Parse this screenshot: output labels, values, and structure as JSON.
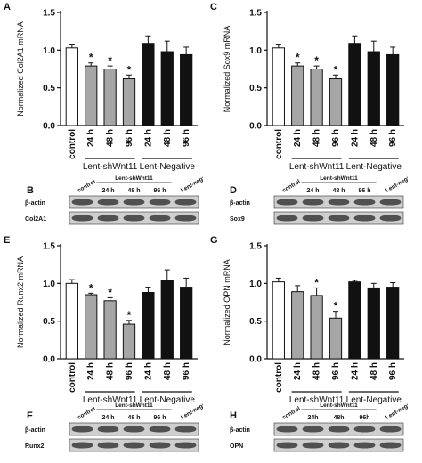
{
  "figure": {
    "group_treated": "Lent-shWnt11",
    "group_negative": "Lent-Negative",
    "x_labels": [
      "control",
      "24 h",
      "48 h",
      "96 h",
      "24 h",
      "48 h",
      "96 h"
    ],
    "colors": {
      "control": "#ffffff",
      "shWnt11": "#a6a6a6",
      "negative": "#111111",
      "axis": "#111111"
    }
  },
  "chart_data": [
    {
      "letter": "A",
      "type": "bar",
      "ylabel": "Normalized Col2A1 mRNA",
      "ylim": [
        0,
        1.5
      ],
      "yticks": [
        "0.0",
        "0.5",
        "1.0",
        "1.5"
      ],
      "categories": [
        "control",
        "24 h",
        "48 h",
        "96 h",
        "24 h",
        "48 h",
        "96 h"
      ],
      "groups": [
        "Lent-shWnt11",
        "Lent-Negative"
      ],
      "values": [
        1.03,
        0.79,
        0.75,
        0.62,
        1.09,
        0.98,
        0.94
      ],
      "errors": [
        0.05,
        0.04,
        0.04,
        0.05,
        0.1,
        0.14,
        0.1
      ],
      "significance": [
        "",
        "*",
        "*",
        "*",
        "",
        "",
        ""
      ]
    },
    {
      "letter": "C",
      "type": "bar",
      "ylabel": "Normalized Sox9 mRNA",
      "ylim": [
        0,
        1.5
      ],
      "yticks": [
        "0.0",
        "0.5",
        "1.0",
        "1.5"
      ],
      "categories": [
        "control",
        "24 h",
        "48 h",
        "96 h",
        "24 h",
        "48 h",
        "96 h"
      ],
      "groups": [
        "Lent-shWnt11",
        "Lent-Negative"
      ],
      "values": [
        1.03,
        0.79,
        0.75,
        0.62,
        1.09,
        0.98,
        0.94
      ],
      "errors": [
        0.05,
        0.04,
        0.04,
        0.05,
        0.1,
        0.14,
        0.1
      ],
      "significance": [
        "",
        "*",
        "*",
        "*",
        "",
        "",
        ""
      ]
    },
    {
      "letter": "E",
      "type": "bar",
      "ylabel": "Normalized Runx2 mRNA",
      "ylim": [
        0,
        1.5
      ],
      "yticks": [
        "0.0",
        "0.5",
        "1.0",
        "1.5"
      ],
      "categories": [
        "control",
        "24 h",
        "48 h",
        "96 h",
        "24 h",
        "48 h",
        "96 h"
      ],
      "groups": [
        "Lent-shWnt11",
        "Lent-Negative"
      ],
      "values": [
        1.0,
        0.85,
        0.77,
        0.46,
        0.88,
        1.04,
        0.95
      ],
      "errors": [
        0.05,
        0.02,
        0.04,
        0.05,
        0.07,
        0.14,
        0.12
      ],
      "significance": [
        "",
        "*",
        "*",
        "*",
        "",
        "",
        ""
      ]
    },
    {
      "letter": "G",
      "type": "bar",
      "ylabel": "Normalized OPN mRNA",
      "ylim": [
        0,
        1.5
      ],
      "yticks": [
        "0.0",
        "0.5",
        "1.0",
        "1.5"
      ],
      "categories": [
        "control",
        "24 h",
        "48 h",
        "96 h",
        "24 h",
        "48 h",
        "96 h"
      ],
      "groups": [
        "Lent-shWnt11",
        "Lent-Negative"
      ],
      "values": [
        1.02,
        0.89,
        0.84,
        0.54,
        1.02,
        0.94,
        0.95
      ],
      "errors": [
        0.05,
        0.08,
        0.1,
        0.09,
        0.02,
        0.06,
        0.06
      ],
      "significance": [
        "",
        "",
        "*",
        "*",
        "",
        "",
        ""
      ]
    }
  ],
  "blots": [
    {
      "letter": "B",
      "rows": [
        "β-actin",
        "Col2A1"
      ],
      "group1": "Lent-shWnt11",
      "labels": [
        "control",
        "24 h",
        "48 h",
        "96 h",
        "Lent-negative"
      ]
    },
    {
      "letter": "D",
      "rows": [
        "β-actin",
        "Sox9"
      ],
      "group1": "Lent-shWnt11",
      "labels": [
        "control",
        "24 h",
        "48 h",
        "96 h",
        "Lent-negative"
      ]
    },
    {
      "letter": "F",
      "rows": [
        "β-actin",
        "Runx2"
      ],
      "group1": "Lent-shWnt11",
      "labels": [
        "control",
        "24 h",
        "48 h",
        "96 h",
        "Lent-negative"
      ]
    },
    {
      "letter": "H",
      "rows": [
        "β-actin",
        "OPN"
      ],
      "group1": "Lent-shWnt11",
      "labels": [
        "control",
        "24h",
        "48h",
        "96h",
        "Lent-negative"
      ]
    }
  ]
}
